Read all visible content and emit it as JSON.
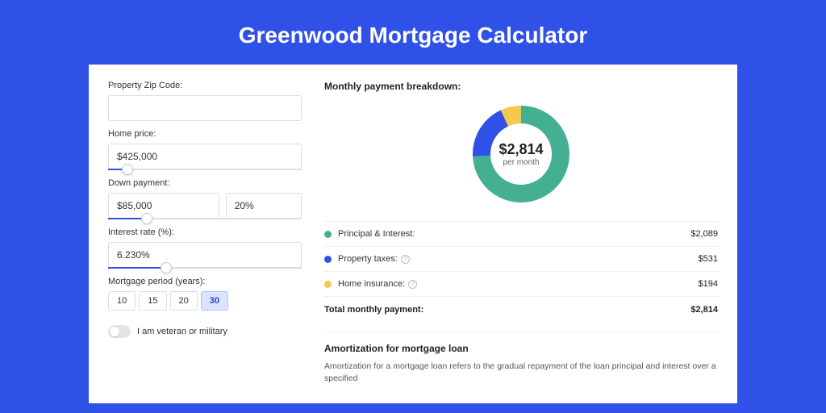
{
  "page": {
    "title": "Greenwood Mortgage Calculator",
    "background_color": "#3051e8",
    "header_strip_color": "#2a44c4",
    "card_background": "#ffffff"
  },
  "form": {
    "zip": {
      "label": "Property Zip Code:",
      "value": ""
    },
    "home_price": {
      "label": "Home price:",
      "value": "$425,000",
      "slider_pct": 10
    },
    "down_payment": {
      "label": "Down payment:",
      "value": "$85,000",
      "pct_value": "20%",
      "slider_pct": 20
    },
    "interest_rate": {
      "label": "Interest rate (%):",
      "value": "6.230%",
      "slider_pct": 30
    },
    "period": {
      "label": "Mortgage period (years):",
      "options": [
        "10",
        "15",
        "20",
        "30"
      ],
      "active": "30"
    },
    "veteran": {
      "label": "I am veteran or military",
      "enabled": false
    }
  },
  "breakdown": {
    "title": "Monthly payment breakdown:",
    "donut": {
      "amount": "$2,814",
      "sub": "per month",
      "slices": [
        {
          "key": "principal_interest",
          "value": 2089,
          "color": "#45b091"
        },
        {
          "key": "property_taxes",
          "value": 531,
          "color": "#3051e8"
        },
        {
          "key": "home_insurance",
          "value": 194,
          "color": "#f2c94c"
        }
      ],
      "inner_radius": 38,
      "outer_radius": 60
    },
    "legend": [
      {
        "label": "Principal & Interest:",
        "value": "$2,089",
        "color": "#45b091",
        "info": false
      },
      {
        "label": "Property taxes:",
        "value": "$531",
        "color": "#3051e8",
        "info": true
      },
      {
        "label": "Home insurance:",
        "value": "$194",
        "color": "#f2c94c",
        "info": true
      }
    ],
    "total": {
      "label": "Total monthly payment:",
      "value": "$2,814"
    }
  },
  "amortization": {
    "title": "Amortization for mortgage loan",
    "text": "Amortization for a mortgage loan refers to the gradual repayment of the loan principal and interest over a specified"
  }
}
